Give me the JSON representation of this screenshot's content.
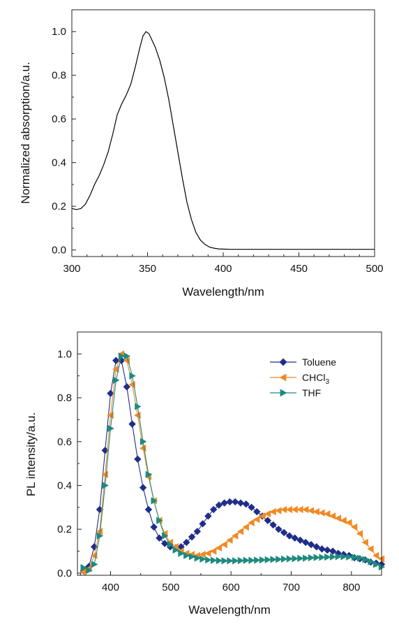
{
  "chart_data": [
    {
      "type": "line",
      "title": "",
      "xlabel": "Wavelength/nm",
      "ylabel": "Normalized absorption/a.u.",
      "xlim": [
        300,
        500
      ],
      "ylim": [
        -0.03,
        1.1
      ],
      "x_ticks": [
        "300",
        "350",
        "400",
        "450",
        "500"
      ],
      "y_ticks": [
        "0.0",
        "0.2",
        "0.4",
        "0.6",
        "0.8",
        "1.0"
      ],
      "grid": false,
      "legend": "none",
      "series": [
        {
          "color": "#000000",
          "x": [
            300,
            303,
            306,
            309,
            312,
            315,
            318,
            321,
            324,
            327,
            330,
            333,
            336,
            339,
            342,
            345,
            347,
            349,
            351,
            353,
            355,
            358,
            361,
            364,
            367,
            370,
            373,
            376,
            379,
            382,
            385,
            388,
            391,
            394,
            397,
            400,
            405,
            410,
            420,
            440,
            460,
            480,
            500
          ],
          "y": [
            0.19,
            0.185,
            0.19,
            0.21,
            0.25,
            0.3,
            0.34,
            0.39,
            0.45,
            0.53,
            0.62,
            0.67,
            0.71,
            0.76,
            0.84,
            0.93,
            0.98,
            1.0,
            0.99,
            0.96,
            0.93,
            0.87,
            0.79,
            0.69,
            0.57,
            0.45,
            0.33,
            0.22,
            0.14,
            0.08,
            0.045,
            0.025,
            0.013,
            0.008,
            0.005,
            0.004,
            0.003,
            0.003,
            0.003,
            0.003,
            0.003,
            0.003,
            0.003
          ]
        }
      ]
    },
    {
      "type": "line",
      "title": "",
      "xlabel": "Wavelength/nm",
      "ylabel": "PL intensity/a.u.",
      "xlim": [
        345,
        850
      ],
      "ylim": [
        -0.01,
        1.1
      ],
      "x_ticks": [
        "400",
        "500",
        "600",
        "700",
        "800"
      ],
      "y_ticks": [
        "0.0",
        "0.2",
        "0.4",
        "0.6",
        "0.8",
        "1.0"
      ],
      "grid": false,
      "legend": "top-right",
      "series": [
        {
          "name": "Toluene",
          "sub": "",
          "marker": "diamond",
          "color": "#1f2d8a",
          "x": [
            355,
            364,
            373,
            382,
            391,
            400,
            409,
            418,
            427,
            436,
            445,
            454,
            463,
            472,
            481,
            490,
            499,
            508,
            517,
            526,
            535,
            544,
            553,
            562,
            571,
            580,
            589,
            598,
            607,
            616,
            625,
            634,
            643,
            652,
            661,
            670,
            679,
            688,
            697,
            706,
            715,
            724,
            733,
            742,
            751,
            760,
            769,
            778,
            787,
            796,
            805,
            814,
            823,
            832,
            841,
            850
          ],
          "y": [
            0.01,
            0.03,
            0.12,
            0.29,
            0.56,
            0.82,
            0.97,
            0.97,
            0.85,
            0.68,
            0.52,
            0.39,
            0.29,
            0.21,
            0.16,
            0.135,
            0.12,
            0.115,
            0.12,
            0.14,
            0.165,
            0.19,
            0.225,
            0.26,
            0.29,
            0.31,
            0.32,
            0.325,
            0.325,
            0.32,
            0.315,
            0.3,
            0.28,
            0.26,
            0.24,
            0.22,
            0.2,
            0.185,
            0.17,
            0.16,
            0.15,
            0.14,
            0.13,
            0.12,
            0.11,
            0.105,
            0.1,
            0.09,
            0.085,
            0.08,
            0.07,
            0.065,
            0.06,
            0.05,
            0.045,
            0.04
          ]
        },
        {
          "name": "CHCl",
          "sub": "3",
          "marker": "triangle-left",
          "color": "#f08a24",
          "x": [
            355,
            364,
            373,
            382,
            391,
            400,
            409,
            418,
            427,
            436,
            445,
            454,
            463,
            472,
            481,
            490,
            499,
            508,
            517,
            526,
            535,
            544,
            553,
            562,
            571,
            580,
            589,
            598,
            607,
            616,
            625,
            634,
            643,
            652,
            661,
            670,
            679,
            688,
            697,
            706,
            715,
            724,
            733,
            742,
            751,
            760,
            769,
            778,
            787,
            796,
            805,
            814,
            823,
            832,
            841,
            850
          ],
          "y": [
            0.005,
            0.02,
            0.08,
            0.19,
            0.45,
            0.72,
            0.93,
            1.0,
            0.97,
            0.86,
            0.72,
            0.57,
            0.44,
            0.33,
            0.24,
            0.18,
            0.14,
            0.12,
            0.1,
            0.09,
            0.085,
            0.08,
            0.085,
            0.09,
            0.1,
            0.115,
            0.13,
            0.15,
            0.17,
            0.19,
            0.21,
            0.23,
            0.245,
            0.26,
            0.27,
            0.28,
            0.285,
            0.29,
            0.29,
            0.29,
            0.29,
            0.29,
            0.285,
            0.28,
            0.275,
            0.27,
            0.26,
            0.25,
            0.24,
            0.23,
            0.21,
            0.18,
            0.14,
            0.11,
            0.08,
            0.065
          ]
        },
        {
          "name": "THF",
          "sub": "",
          "marker": "triangle-right",
          "color": "#1e8a7e",
          "x": [
            355,
            364,
            373,
            382,
            391,
            400,
            409,
            418,
            427,
            436,
            445,
            454,
            463,
            472,
            481,
            490,
            499,
            508,
            517,
            526,
            535,
            544,
            553,
            562,
            571,
            580,
            589,
            598,
            607,
            616,
            625,
            634,
            643,
            652,
            661,
            670,
            679,
            688,
            697,
            706,
            715,
            724,
            733,
            742,
            751,
            760,
            769,
            778,
            787,
            796,
            805,
            814,
            823,
            832,
            841,
            850
          ],
          "y": [
            0.025,
            0.012,
            0.04,
            0.17,
            0.4,
            0.66,
            0.88,
            0.99,
            0.99,
            0.9,
            0.76,
            0.6,
            0.45,
            0.33,
            0.24,
            0.17,
            0.13,
            0.105,
            0.09,
            0.08,
            0.075,
            0.068,
            0.064,
            0.06,
            0.058,
            0.057,
            0.056,
            0.056,
            0.056,
            0.057,
            0.058,
            0.058,
            0.059,
            0.06,
            0.061,
            0.062,
            0.063,
            0.064,
            0.065,
            0.066,
            0.067,
            0.068,
            0.07,
            0.071,
            0.072,
            0.073,
            0.074,
            0.075,
            0.075,
            0.074,
            0.072,
            0.068,
            0.062,
            0.052,
            0.04,
            0.028
          ]
        }
      ]
    }
  ]
}
